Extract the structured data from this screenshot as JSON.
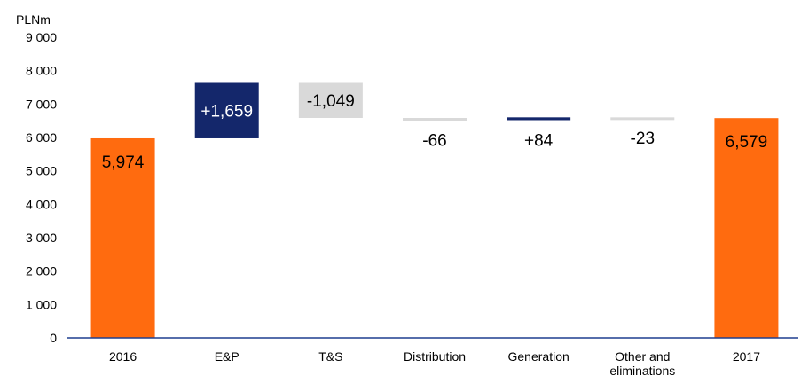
{
  "chart_data": {
    "type": "waterfall",
    "unit_label": "PLNm",
    "categories": [
      "2016",
      "E&P",
      "T&S",
      "Distribution",
      "Generation",
      "Other and eliminations",
      "2017"
    ],
    "category_lines": [
      [
        "2016"
      ],
      [
        "E&P"
      ],
      [
        "T&S"
      ],
      [
        "Distribution"
      ],
      [
        "Generation"
      ],
      [
        "Other and",
        "eliminations"
      ],
      [
        "2017"
      ]
    ],
    "values": [
      5974,
      1659,
      -1049,
      -66,
      84,
      -23,
      6579
    ],
    "kinds": [
      "total",
      "delta",
      "delta",
      "delta",
      "delta",
      "delta",
      "total"
    ],
    "data_labels": [
      "5,974",
      "+1,659",
      "-1,049",
      "-66",
      "+84",
      "-23",
      "6,579"
    ],
    "yticks": [
      0,
      1000,
      2000,
      3000,
      4000,
      5000,
      6000,
      7000,
      8000,
      9000
    ],
    "ytick_labels": [
      "0",
      "1 000",
      "2 000",
      "3 000",
      "4 000",
      "5 000",
      "6 000",
      "7 000",
      "8 000",
      "9 000"
    ],
    "ylim": [
      0,
      9000
    ],
    "grid": false,
    "colors": {
      "total": "#FF6B0F",
      "increase": "#14276B",
      "decrease": "#D9D9D9",
      "axis": "#1F3F8F"
    }
  }
}
